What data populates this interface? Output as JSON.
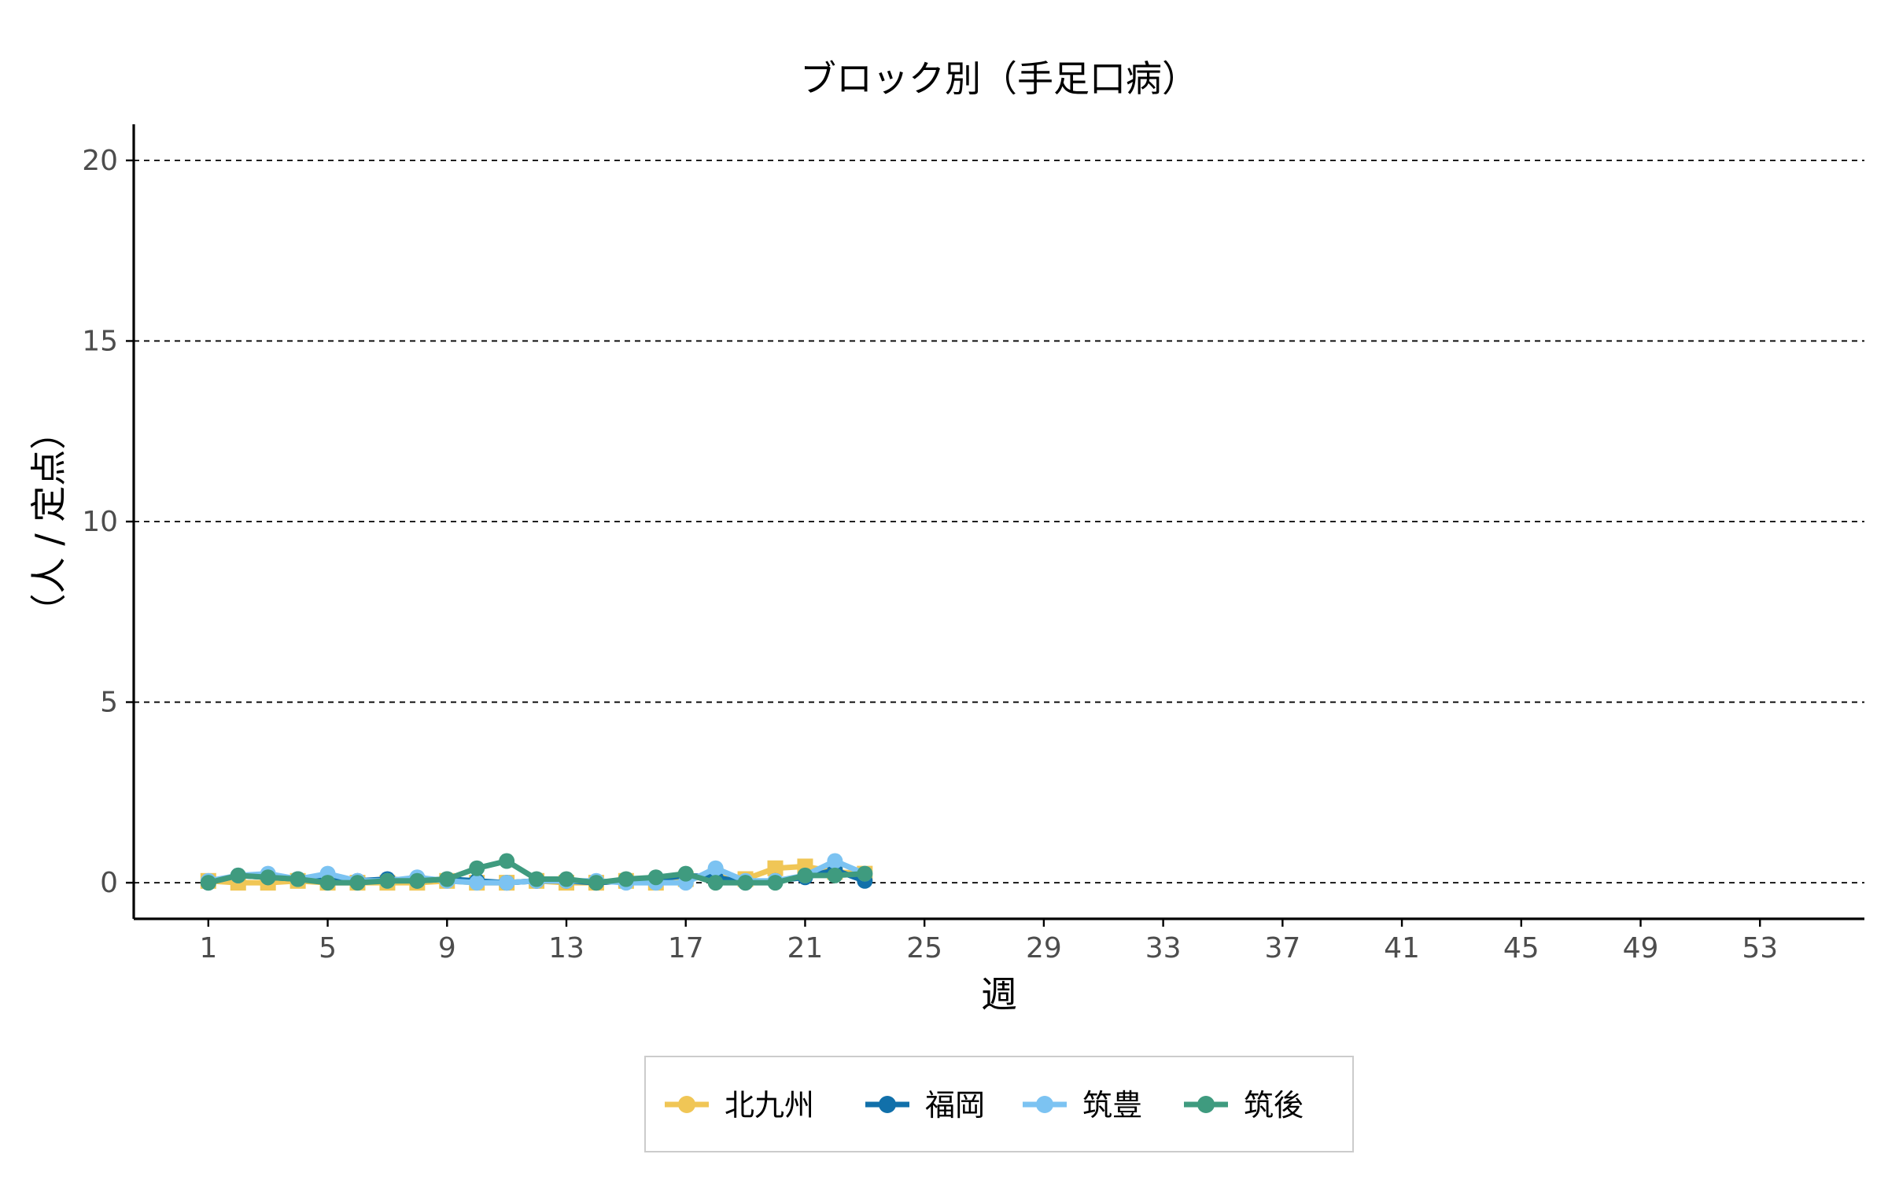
{
  "chart_data": {
    "type": "line",
    "title": "ブロック別（手足口病）",
    "xlabel": "週",
    "ylabel": "（人 / 定点）",
    "xlim": [
      -1.5,
      56.5
    ],
    "ylim": [
      -1,
      21
    ],
    "x_ticks": [
      1,
      5,
      9,
      13,
      17,
      21,
      25,
      29,
      33,
      37,
      41,
      45,
      49,
      53
    ],
    "y_ticks": [
      0,
      5,
      10,
      15,
      20
    ],
    "grid": "horizontal dashed",
    "legend_position": "bottom",
    "x": [
      1,
      2,
      3,
      4,
      5,
      6,
      7,
      8,
      9,
      10,
      11,
      12,
      13,
      14,
      15,
      16,
      17,
      18,
      19,
      20,
      21,
      22,
      23
    ],
    "series": [
      {
        "name": "北九州",
        "color": "#f0c656",
        "marker": "square",
        "values": [
          0.05,
          0.0,
          0.0,
          0.05,
          0.0,
          0.0,
          0.0,
          0.0,
          0.05,
          0.0,
          0.0,
          0.05,
          0.0,
          0.0,
          0.05,
          0.0,
          0.1,
          0.2,
          0.1,
          0.4,
          0.45,
          0.3,
          0.25
        ]
      },
      {
        "name": "福岡",
        "color": "#1170aa",
        "marker": "circle",
        "values": [
          0.0,
          0.2,
          0.15,
          0.1,
          0.05,
          0.05,
          0.1,
          0.05,
          0.1,
          0.05,
          0.0,
          0.05,
          0.05,
          0.0,
          0.05,
          0.1,
          0.2,
          0.15,
          0.0,
          0.05,
          0.15,
          0.35,
          0.05
        ]
      },
      {
        "name": "筑豊",
        "color": "#7cc3f2",
        "marker": "circle",
        "values": [
          0.05,
          0.2,
          0.25,
          0.1,
          0.25,
          0.05,
          0.05,
          0.15,
          0.05,
          0.0,
          0.0,
          0.05,
          0.05,
          0.05,
          0.0,
          0.0,
          0.0,
          0.4,
          0.05,
          0.05,
          0.2,
          0.6,
          0.25
        ]
      },
      {
        "name": "筑後",
        "color": "#3f9b7f",
        "marker": "circle",
        "values": [
          0.0,
          0.2,
          0.15,
          0.1,
          0.0,
          0.0,
          0.05,
          0.05,
          0.1,
          0.4,
          0.6,
          0.1,
          0.1,
          0.0,
          0.1,
          0.15,
          0.25,
          0.0,
          0.0,
          0.0,
          0.2,
          0.2,
          0.25
        ]
      }
    ]
  }
}
